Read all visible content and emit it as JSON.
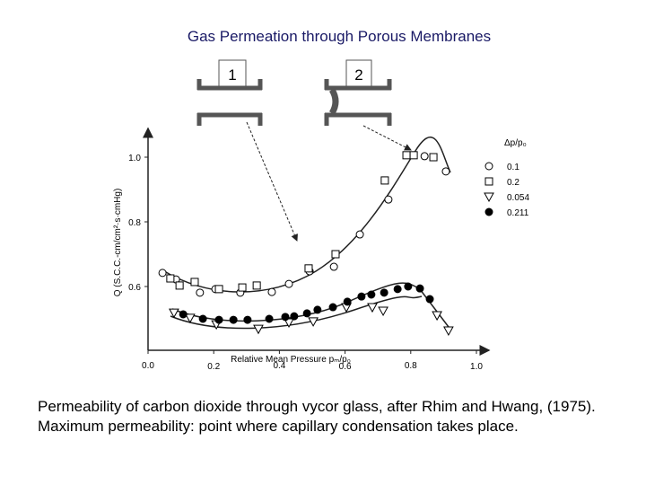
{
  "chart_data": {
    "type": "scatter",
    "title": "Gas Permeation through Porous Membranes",
    "caption": [
      "Permeability of carbon dioxide through vycor glass, after Rhim and Hwang, (1975).",
      "Maximum permeability: point where capillary condensation takes place."
    ],
    "pore_labels": [
      "1",
      "2"
    ],
    "x_label": "Relative Mean Pressure pₘ/p₀",
    "y_label": "Q (S.C.C.-cm/cm²·s·cmHg)",
    "legend_title": "Δp/p₀",
    "xlim": [
      0,
      1.04
    ],
    "ylim": [
      0.4,
      1.1
    ],
    "xticks": [
      {
        "value": 0,
        "label": "0.0"
      },
      0.2,
      0.4,
      0.6,
      0.8,
      {
        "value": 1,
        "label": "1.0"
      }
    ],
    "yticks": [
      0.6,
      0.8,
      {
        "value": 1,
        "label": "1.0"
      }
    ],
    "series": [
      {
        "name": "0.1",
        "color": "#000000",
        "marker": "circle",
        "x": [
          0.044,
          0.085,
          0.158,
          0.205,
          0.281,
          0.377,
          0.429,
          0.492,
          0.566,
          0.645,
          0.732,
          0.842,
          0.907
        ],
        "values": [
          0.642,
          0.622,
          0.581,
          0.592,
          0.581,
          0.583,
          0.608,
          0.647,
          0.661,
          0.761,
          0.869,
          1.003,
          0.956
        ]
      },
      {
        "name": "0.2",
        "color": "#000000",
        "marker": "square",
        "x": [
          0.068,
          0.096,
          0.142,
          0.216,
          0.287,
          0.331,
          0.489,
          0.571,
          0.721,
          0.787,
          0.809,
          0.869
        ],
        "values": [
          0.625,
          0.603,
          0.614,
          0.592,
          0.597,
          0.603,
          0.656,
          0.7,
          0.928,
          1.006,
          1.006,
          1.0
        ]
      },
      {
        "name": "0.054",
        "color": "#000000",
        "marker": "triangle-down",
        "x": [
          0.079,
          0.128,
          0.208,
          0.336,
          0.429,
          0.503,
          0.604,
          0.683,
          0.716,
          0.88,
          0.915
        ],
        "values": [
          0.519,
          0.503,
          0.483,
          0.469,
          0.489,
          0.492,
          0.536,
          0.536,
          0.525,
          0.511,
          0.464
        ]
      },
      {
        "name": "0.211",
        "color": "#000000",
        "marker": "filled-circle",
        "x": [
          0.107,
          0.167,
          0.216,
          0.26,
          0.303,
          0.369,
          0.418,
          0.445,
          0.484,
          0.516,
          0.563,
          0.607,
          0.65,
          0.68,
          0.719,
          0.76,
          0.792,
          0.828,
          0.858
        ],
        "values": [
          0.514,
          0.5,
          0.497,
          0.497,
          0.497,
          0.5,
          0.506,
          0.508,
          0.517,
          0.528,
          0.536,
          0.553,
          0.569,
          0.575,
          0.581,
          0.592,
          0.6,
          0.594,
          0.561
        ]
      }
    ]
  }
}
